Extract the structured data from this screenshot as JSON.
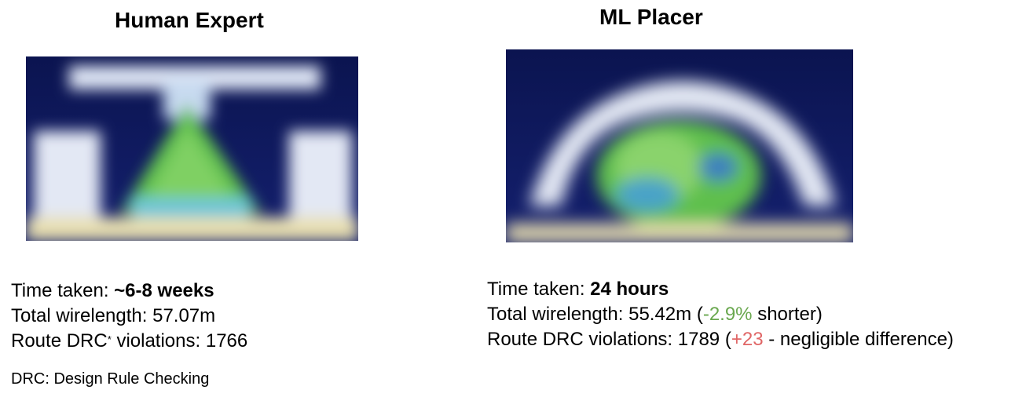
{
  "human": {
    "title": "Human Expert",
    "image_name": "human-expert-placement-image",
    "time_label": "Time taken: ",
    "time_value": "~6-8 weeks",
    "wirelength_label": "Total wirelength: ",
    "wirelength_value": "57.07m",
    "drc_label": "Route DRC",
    "drc_marker": "*",
    "drc_suffix": " violations: ",
    "drc_value": "1766"
  },
  "ml": {
    "title": "ML Placer",
    "image_name": "ml-placer-placement-image",
    "time_label": "Time taken: ",
    "time_value": "24 hours",
    "wirelength_label": "Total wirelength: ",
    "wirelength_value": "55.42m",
    "wirelength_open": " (",
    "wirelength_delta": "-2.9%",
    "wirelength_note": " shorter)",
    "drc_label": "Route DRC violations: ",
    "drc_value": "1789",
    "drc_open": " (",
    "drc_delta": "+23",
    "drc_note": " - negligible difference)"
  },
  "footnote": "DRC: Design Rule Checking",
  "colors": {
    "background": "#0d1a5c",
    "green": "#6aa84f",
    "red": "#e06666"
  }
}
